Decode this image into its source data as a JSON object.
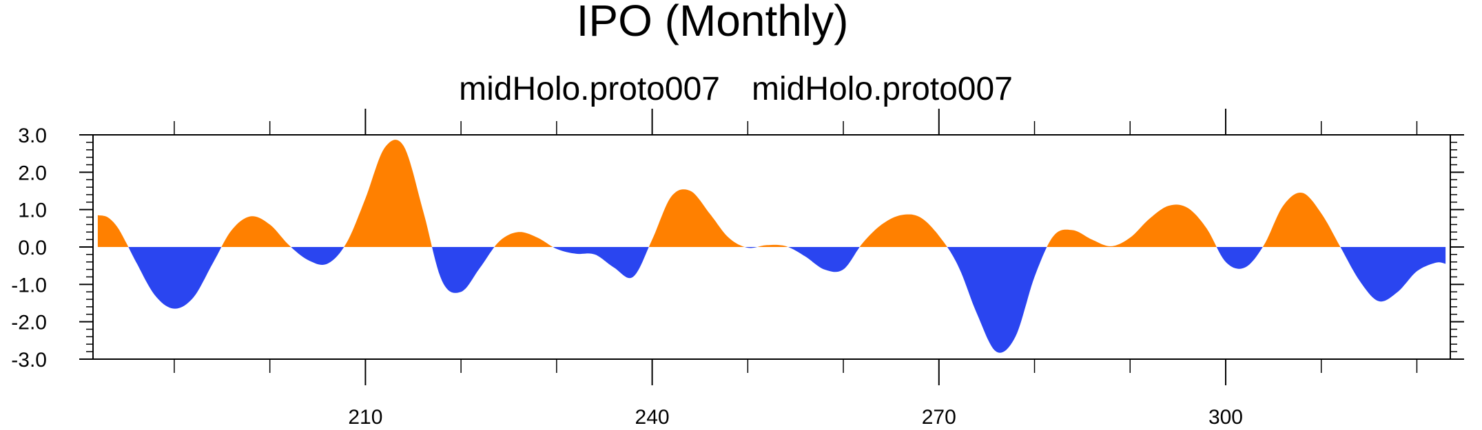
{
  "chart_data": {
    "type": "area",
    "title": "IPO (Monthly)",
    "subtitles": [
      "midHolo.proto007",
      "midHolo.proto007"
    ],
    "xlabel": "",
    "ylabel": "",
    "xlim": [
      181.5,
      323.5
    ],
    "ylim": [
      -3.0,
      3.0
    ],
    "x_major_ticks": [
      210,
      240,
      270,
      300
    ],
    "x_tick_labels": [
      "210",
      "240",
      "270",
      "300"
    ],
    "y_major_ticks": [
      -3.0,
      -2.0,
      -1.0,
      0.0,
      1.0,
      2.0,
      3.0
    ],
    "y_tick_labels": [
      "-3.0",
      "-2.0",
      "-1.0",
      "0.0",
      "1.0",
      "2.0",
      "3.0"
    ],
    "positive_color": "#ff8000",
    "negative_color": "#2a45f0",
    "series": [
      {
        "name": "IPO",
        "x": [
          182,
          183,
          184,
          185,
          186,
          188,
          190,
          192,
          194,
          196,
          198,
          200,
          202,
          204,
          206,
          208,
          210,
          212,
          214,
          216,
          218,
          220,
          222,
          224,
          226,
          228,
          230,
          232,
          234,
          236,
          238,
          240,
          242,
          244,
          246,
          248,
          250,
          252,
          254,
          256,
          258,
          260,
          262,
          264,
          266,
          268,
          270,
          272,
          274,
          276,
          278,
          280,
          282,
          284,
          286,
          288,
          290,
          292,
          294,
          296,
          298,
          300,
          302,
          304,
          306,
          308,
          310,
          312,
          314,
          316,
          318,
          320,
          322,
          323
        ],
        "values": [
          0.85,
          0.8,
          0.55,
          0.1,
          -0.4,
          -1.3,
          -1.65,
          -1.35,
          -0.45,
          0.45,
          0.82,
          0.6,
          0.05,
          -0.35,
          -0.45,
          0.1,
          1.3,
          2.65,
          2.7,
          1.0,
          -0.9,
          -1.2,
          -0.55,
          0.15,
          0.4,
          0.25,
          -0.05,
          -0.18,
          -0.2,
          -0.55,
          -0.8,
          0.2,
          1.35,
          1.5,
          0.9,
          0.25,
          -0.02,
          0.05,
          0.02,
          -0.25,
          -0.6,
          -0.6,
          0.1,
          0.6,
          0.85,
          0.8,
          0.3,
          -0.5,
          -1.8,
          -2.8,
          -2.4,
          -0.8,
          0.3,
          0.45,
          0.2,
          0.02,
          0.25,
          0.75,
          1.1,
          1.05,
          0.5,
          -0.4,
          -0.55,
          0.05,
          1.1,
          1.45,
          0.9,
          0.0,
          -0.9,
          -1.45,
          -1.2,
          -0.65,
          -0.42,
          -0.45
        ]
      }
    ]
  }
}
